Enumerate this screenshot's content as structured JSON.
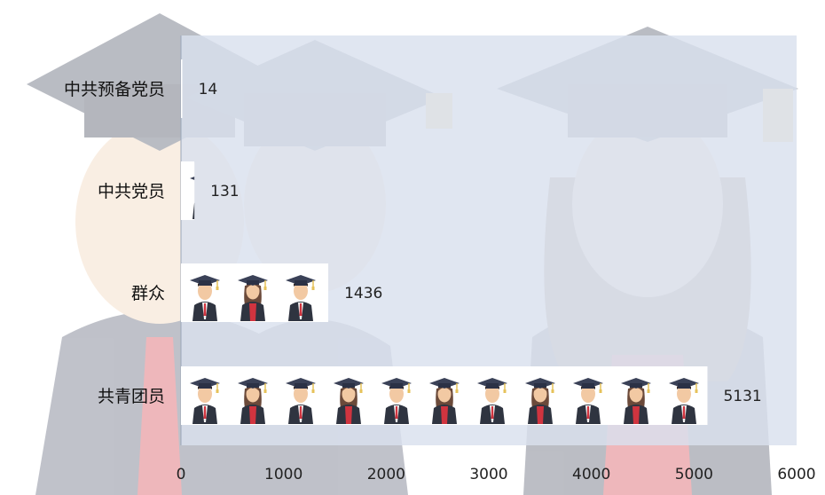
{
  "chart_data": {
    "type": "bar",
    "orientation": "horizontal",
    "categories": [
      "中共预备党员",
      "中共党员",
      "群众",
      "共青团员"
    ],
    "values": [
      14,
      131,
      1436,
      5131
    ],
    "value_labels": [
      "14",
      "131",
      "1436",
      "5131"
    ],
    "title": "",
    "xlabel": "",
    "ylabel": "",
    "xlim": [
      0,
      6000
    ],
    "xticks": [
      "0",
      "1000",
      "2000",
      "3000",
      "4000",
      "5000",
      "6000"
    ],
    "grid": false,
    "legend": "none",
    "bar_fill": "pictograph-graduates"
  },
  "colors": {
    "plot_background": "#d9e1ee",
    "cap": "#3a4157",
    "tassel": "#e6c25a",
    "skin": "#f2c9a3",
    "hair": "#6b4a3a",
    "gown": "#2f3440",
    "tie": "#d0343f"
  }
}
